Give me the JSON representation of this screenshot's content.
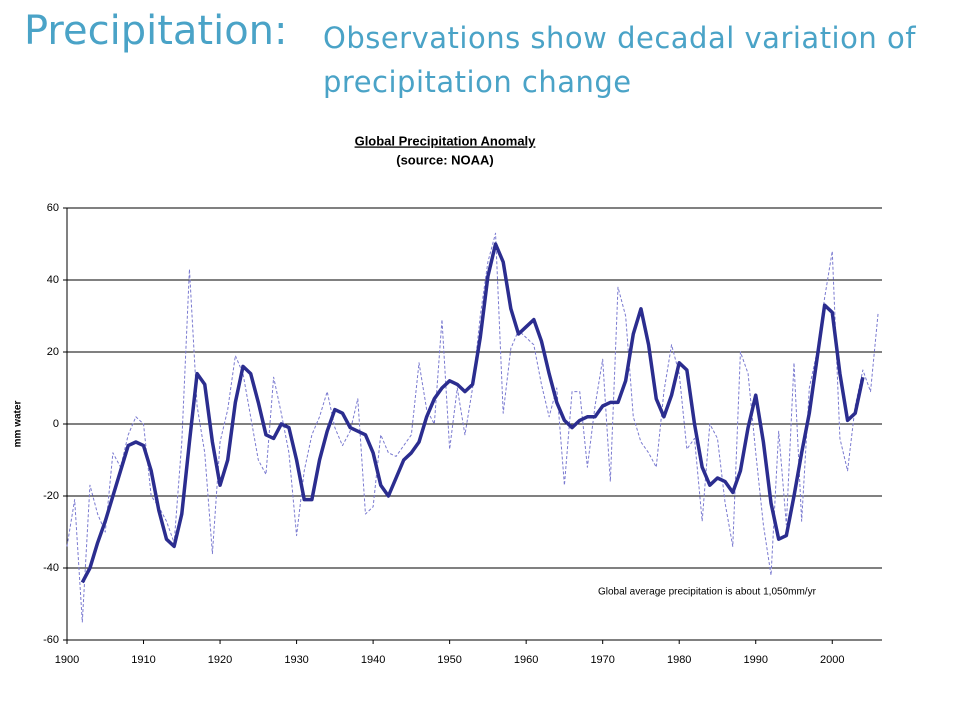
{
  "heading": "Precipitation:",
  "subheading": "Observations show decadal variation of precipitation change",
  "chart_data": {
    "type": "line",
    "title": "Global Precipitation Anomaly",
    "subtitle": "(source: NOAA)",
    "y_label": "mm water",
    "annotation": "Global average precipitation is about 1,050mm/yr",
    "x": [
      1900,
      1901,
      1902,
      1903,
      1904,
      1905,
      1906,
      1907,
      1908,
      1909,
      1910,
      1911,
      1912,
      1913,
      1914,
      1915,
      1916,
      1917,
      1918,
      1919,
      1920,
      1921,
      1922,
      1923,
      1924,
      1925,
      1926,
      1927,
      1928,
      1929,
      1930,
      1931,
      1932,
      1933,
      1934,
      1935,
      1936,
      1937,
      1938,
      1939,
      1940,
      1941,
      1942,
      1943,
      1944,
      1945,
      1946,
      1947,
      1948,
      1949,
      1950,
      1951,
      1952,
      1953,
      1954,
      1955,
      1956,
      1957,
      1958,
      1959,
      1960,
      1961,
      1962,
      1963,
      1964,
      1965,
      1966,
      1967,
      1968,
      1969,
      1970,
      1971,
      1972,
      1973,
      1974,
      1975,
      1976,
      1977,
      1978,
      1979,
      1980,
      1981,
      1982,
      1983,
      1984,
      1985,
      1986,
      1987,
      1988,
      1989,
      1990,
      1991,
      1992,
      1993,
      1994,
      1995,
      1996,
      1997,
      1998,
      1999,
      2000,
      2001,
      2002,
      2003,
      2004,
      2005,
      2006
    ],
    "series": [
      {
        "color": "#7a7ad0",
        "dashed": true,
        "width": 1,
        "values": [
          -34,
          -21,
          -55,
          -17,
          -25,
          -30,
          -8,
          -12,
          -3,
          2,
          0,
          -20,
          -23,
          -27,
          -33,
          -5,
          43,
          5,
          -8,
          -36,
          -5,
          4,
          19,
          14,
          2,
          -10,
          -14,
          13,
          3,
          -8,
          -31,
          -13,
          -3,
          2,
          9,
          -1,
          -6,
          -2,
          7,
          -25,
          -23,
          -3,
          -8,
          -9,
          -6,
          -3,
          17,
          4,
          0,
          29,
          -7,
          10,
          -3,
          10,
          30,
          45,
          53,
          3,
          21,
          26,
          24,
          22,
          11,
          2,
          10,
          -17,
          9,
          9,
          -12,
          5,
          18,
          -16,
          38,
          30,
          2,
          -5,
          -8,
          -12,
          9,
          22,
          14,
          -7,
          -4,
          -27,
          0,
          -4,
          -22,
          -34,
          20,
          14,
          -8,
          -28,
          -42,
          -2,
          -28,
          17,
          -27,
          10,
          20,
          35,
          48,
          -4,
          -13,
          5,
          15,
          9,
          31
        ]
      },
      {
        "color": "#2b2d8f",
        "dashed": false,
        "width": 3.5,
        "values": [
          null,
          null,
          -44,
          -40,
          -33,
          -27,
          -20,
          -13,
          -6,
          -5,
          -6,
          -13,
          -24,
          -32,
          -34,
          -25,
          -5,
          14,
          11,
          -5,
          -17,
          -10,
          6,
          16,
          14,
          6,
          -3,
          -4,
          0,
          -1,
          -10,
          -21,
          -21,
          -10,
          -2,
          4,
          3,
          -1,
          -2,
          -3,
          -8,
          -17,
          -20,
          -15,
          -10,
          -8,
          -5,
          2,
          7,
          10,
          12,
          11,
          9,
          11,
          24,
          41,
          50,
          45,
          32,
          25,
          27,
          29,
          23,
          14,
          6,
          1,
          -1,
          1,
          2,
          2,
          5,
          6,
          6,
          12,
          25,
          32,
          22,
          7,
          2,
          8,
          17,
          15,
          0,
          -12,
          -17,
          -15,
          -16,
          -19,
          -13,
          -1,
          8,
          -5,
          -22,
          -32,
          -31,
          -20,
          -8,
          3,
          18,
          33,
          31,
          14,
          1,
          3,
          13,
          null,
          null
        ]
      }
    ],
    "xlim": [
      1900,
      2006.5
    ],
    "xticks": [
      1900,
      1910,
      1920,
      1930,
      1940,
      1950,
      1960,
      1970,
      1980,
      1990,
      2000
    ],
    "ylim": [
      -60,
      60
    ],
    "yticks": [
      -60,
      -40,
      -20,
      0,
      20,
      40,
      60
    ],
    "grid": true
  }
}
